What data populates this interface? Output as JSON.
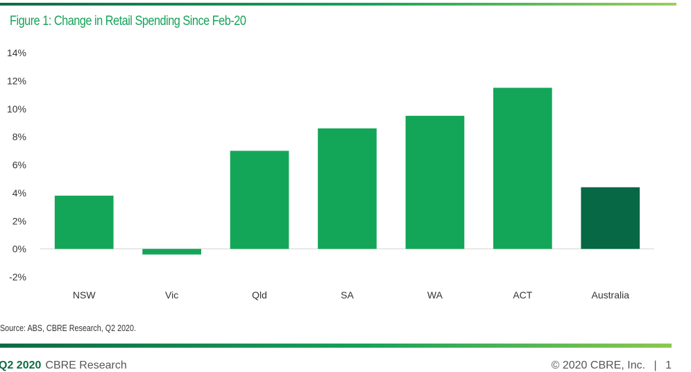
{
  "header": {
    "title": "Figure 1: Change in Retail Spending Since Feb-20"
  },
  "source": "Source: ABS, CBRE Research, Q2 2020.",
  "footer": {
    "period": "Q2 2020",
    "org": "CBRE Research",
    "copyright": "© 2020 CBRE, Inc.",
    "page": "1"
  },
  "colors": {
    "bar": "#14a658",
    "highlight": "#066845",
    "accent": "#17a35a"
  },
  "chart_data": {
    "type": "bar",
    "title": "Figure 1: Change in Retail Spending Since Feb-20",
    "xlabel": "",
    "ylabel": "",
    "categories": [
      "NSW",
      "Vic",
      "Qld",
      "SA",
      "WA",
      "ACT",
      "Australia"
    ],
    "values": [
      3.8,
      -0.4,
      7.0,
      8.6,
      9.5,
      11.5,
      4.4
    ],
    "highlight_category": "Australia",
    "ylim": [
      -2,
      14
    ],
    "yticks": [
      14,
      12,
      10,
      8,
      6,
      4,
      2,
      0,
      -2
    ],
    "ytick_labels": [
      "14%",
      "12%",
      "10%",
      "8%",
      "6%",
      "4%",
      "2%",
      "0%",
      "-2%"
    ],
    "grid": false,
    "legend": "none"
  }
}
